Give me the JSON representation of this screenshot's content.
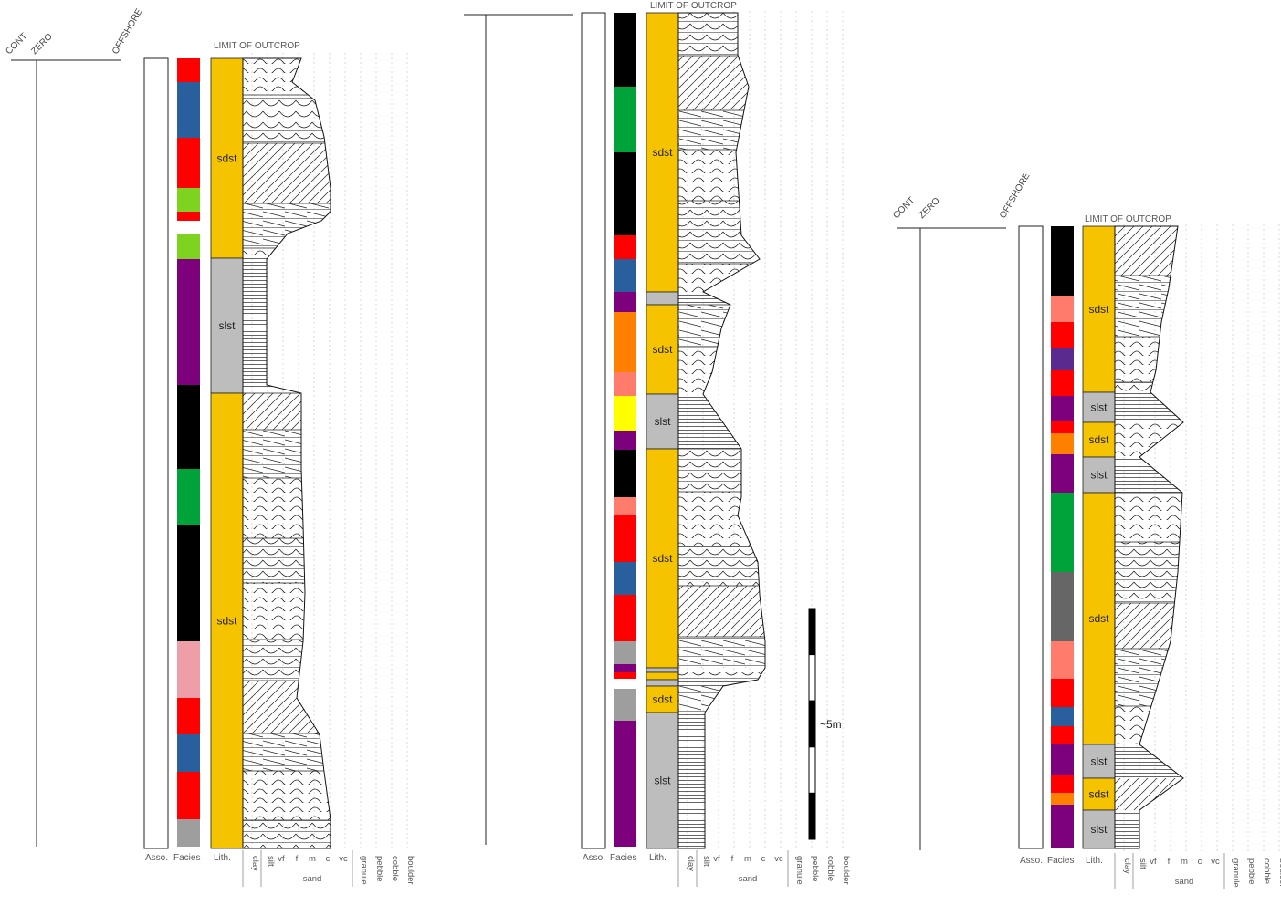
{
  "limit_label": "LIMIT OF OUTCROP",
  "axis_labels": {
    "cont": "CONT",
    "zero": "ZERO",
    "offshore": "OFFSHORE"
  },
  "column_headers": {
    "asso": "Asso.",
    "facies": "Facies",
    "lith": "Lith."
  },
  "grain_sizes": [
    "clay",
    "silt",
    "vf",
    "f",
    "m",
    "c",
    "vc",
    "granule",
    "pebble",
    "cobble",
    "boulder"
  ],
  "sand_label": "sand",
  "scale_label": "~5m",
  "lith_codes": {
    "sandstone": "sdst",
    "siltstone": "slst"
  },
  "colors": {
    "sdst": "#f5c300",
    "slst": "#bdbdbd",
    "red": "#ff0000",
    "blue": "#2a5f9e",
    "black": "#000000",
    "green": "#00a33a",
    "lime": "#7ed321",
    "purple": "#7d007d",
    "indigo": "#5b2a8e",
    "pink": "#ee9ea6",
    "salmon": "#ff7b6b",
    "orange": "#ff8000",
    "yellow": "#ffff00",
    "grey": "#9e9e9e",
    "darkgrey": "#666666"
  },
  "sections": [
    {
      "id": "left",
      "facies": [
        {
          "c": "red",
          "t": 64,
          "b": 90
        },
        {
          "c": "blue",
          "t": 90,
          "b": 151
        },
        {
          "c": "red",
          "t": 151,
          "b": 206
        },
        {
          "c": "lime",
          "t": 206,
          "b": 232
        },
        {
          "c": "red",
          "t": 232,
          "b": 242
        },
        {
          "c": "lime",
          "t": 256,
          "b": 284
        },
        {
          "c": "purple",
          "t": 284,
          "b": 422
        },
        {
          "c": "black",
          "t": 422,
          "b": 514
        },
        {
          "c": "green",
          "t": 514,
          "b": 576
        },
        {
          "c": "black",
          "t": 576,
          "b": 703
        },
        {
          "c": "pink",
          "t": 703,
          "b": 765
        },
        {
          "c": "red",
          "t": 765,
          "b": 805
        },
        {
          "c": "blue",
          "t": 805,
          "b": 846
        },
        {
          "c": "red",
          "t": 846,
          "b": 898
        },
        {
          "c": "grey",
          "t": 898,
          "b": 928
        }
      ],
      "lith": [
        {
          "code": "sdst",
          "t": 64,
          "b": 283
        },
        {
          "code": "slst",
          "t": 283,
          "b": 431
        },
        {
          "code": "sdst",
          "t": 431,
          "b": 930
        }
      ]
    },
    {
      "id": "middle",
      "facies": [
        {
          "c": "black",
          "t": 14,
          "b": 95
        },
        {
          "c": "green",
          "t": 95,
          "b": 167
        },
        {
          "c": "black",
          "t": 167,
          "b": 258
        },
        {
          "c": "red",
          "t": 258,
          "b": 284
        },
        {
          "c": "blue",
          "t": 284,
          "b": 320
        },
        {
          "c": "purple",
          "t": 320,
          "b": 342
        },
        {
          "c": "orange",
          "t": 342,
          "b": 408
        },
        {
          "c": "salmon",
          "t": 408,
          "b": 434
        },
        {
          "c": "yellow",
          "t": 434,
          "b": 472
        },
        {
          "c": "purple",
          "t": 472,
          "b": 493
        },
        {
          "c": "black",
          "t": 493,
          "b": 545
        },
        {
          "c": "salmon",
          "t": 545,
          "b": 565
        },
        {
          "c": "red",
          "t": 565,
          "b": 616
        },
        {
          "c": "blue",
          "t": 616,
          "b": 652
        },
        {
          "c": "red",
          "t": 652,
          "b": 703
        },
        {
          "c": "grey",
          "t": 703,
          "b": 728
        },
        {
          "c": "purple",
          "t": 728,
          "b": 737
        },
        {
          "c": "red",
          "t": 737,
          "b": 744
        },
        {
          "c": "grey",
          "t": 755,
          "b": 790
        },
        {
          "c": "purple",
          "t": 790,
          "b": 928
        }
      ],
      "lith": [
        {
          "code": "sdst",
          "t": 14,
          "b": 320
        },
        {
          "code": "slst",
          "t": 320,
          "b": 334
        },
        {
          "code": "sdst",
          "t": 334,
          "b": 432
        },
        {
          "code": "slst",
          "t": 432,
          "b": 492
        },
        {
          "code": "sdst",
          "t": 492,
          "b": 732
        },
        {
          "code": "slst",
          "t": 732,
          "b": 737
        },
        {
          "code": "sdst",
          "t": 737,
          "b": 745
        },
        {
          "code": "slst",
          "t": 745,
          "b": 752
        },
        {
          "code": "sdst",
          "t": 752,
          "b": 781
        },
        {
          "code": "slst",
          "t": 781,
          "b": 930
        }
      ]
    },
    {
      "id": "right",
      "facies": [
        {
          "c": "black",
          "t": 248,
          "b": 325
        },
        {
          "c": "salmon",
          "t": 325,
          "b": 353
        },
        {
          "c": "red",
          "t": 353,
          "b": 381
        },
        {
          "c": "indigo",
          "t": 381,
          "b": 406
        },
        {
          "c": "red",
          "t": 406,
          "b": 434
        },
        {
          "c": "purple",
          "t": 434,
          "b": 462
        },
        {
          "c": "red",
          "t": 462,
          "b": 475
        },
        {
          "c": "orange",
          "t": 475,
          "b": 498
        },
        {
          "c": "purple",
          "t": 498,
          "b": 540
        },
        {
          "c": "green",
          "t": 540,
          "b": 627
        },
        {
          "c": "darkgrey",
          "t": 627,
          "b": 703
        },
        {
          "c": "salmon",
          "t": 703,
          "b": 744
        },
        {
          "c": "red",
          "t": 744,
          "b": 775
        },
        {
          "c": "blue",
          "t": 775,
          "b": 796
        },
        {
          "c": "red",
          "t": 796,
          "b": 816
        },
        {
          "c": "purple",
          "t": 816,
          "b": 849
        },
        {
          "c": "red",
          "t": 849,
          "b": 869
        },
        {
          "c": "orange",
          "t": 869,
          "b": 882
        },
        {
          "c": "purple",
          "t": 882,
          "b": 930
        }
      ],
      "lith": [
        {
          "code": "sdst",
          "t": 248,
          "b": 430
        },
        {
          "code": "slst",
          "t": 430,
          "b": 463
        },
        {
          "code": "sdst",
          "t": 463,
          "b": 501
        },
        {
          "code": "slst",
          "t": 501,
          "b": 540
        },
        {
          "code": "sdst",
          "t": 540,
          "b": 816
        },
        {
          "code": "slst",
          "t": 816,
          "b": 853
        },
        {
          "code": "sdst",
          "t": 853,
          "b": 888
        },
        {
          "code": "slst",
          "t": 888,
          "b": 930
        }
      ]
    }
  ]
}
